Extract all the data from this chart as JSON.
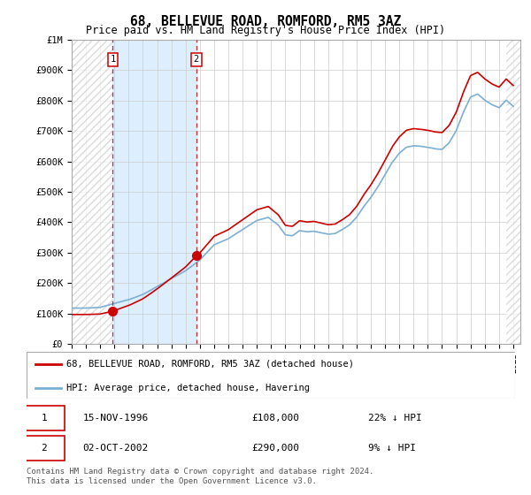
{
  "title": "68, BELLEVUE ROAD, ROMFORD, RM5 3AZ",
  "subtitle": "Price paid vs. HM Land Registry's House Price Index (HPI)",
  "hpi_label": "HPI: Average price, detached house, Havering",
  "price_label": "68, BELLEVUE ROAD, ROMFORD, RM5 3AZ (detached house)",
  "footer": "Contains HM Land Registry data © Crown copyright and database right 2024.\nThis data is licensed under the Open Government Licence v3.0.",
  "sale1_date": "15-NOV-1996",
  "sale1_price": 108000,
  "sale1_hpi_diff": "22% ↓ HPI",
  "sale2_date": "02-OCT-2002",
  "sale2_price": 290000,
  "sale2_hpi_diff": "9% ↓ HPI",
  "ylim_min": 0,
  "ylim_max": 1000000,
  "hpi_color": "#7bafd4",
  "price_color": "#cc0000",
  "vline_color": "#cc0000",
  "grid_color": "#cccccc",
  "sale1_x": 1996.88,
  "sale2_x": 2002.75,
  "xmin": 1994.0,
  "xmax": 2025.5,
  "shade_color": "#ddeeff",
  "hatch_color": "#cccccc"
}
